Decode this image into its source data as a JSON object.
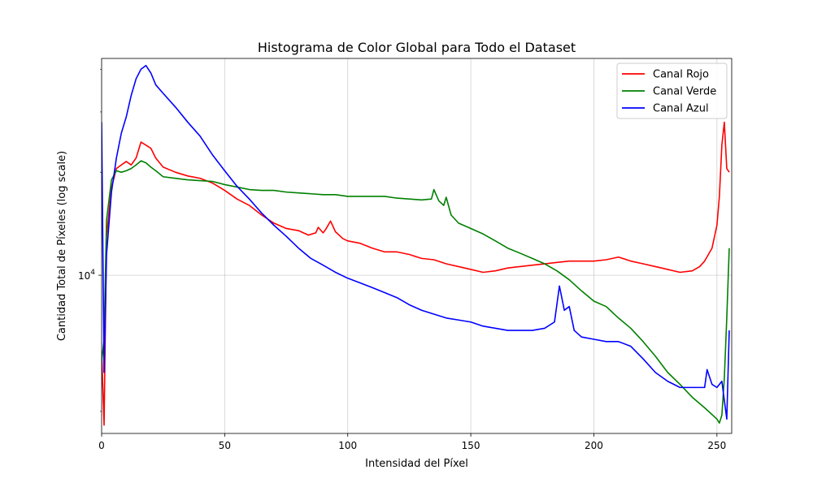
{
  "chart_data": {
    "type": "line",
    "title": "Histograma de Color Global para Todo el Dataset",
    "xlabel": "Intensidad del Píxel",
    "ylabel": "Cantidad Total de Píxeles (log scale)",
    "y_scale": "log",
    "xlim": [
      0,
      256
    ],
    "ylim": [
      3450,
      43000
    ],
    "x_ticks": [
      0,
      50,
      100,
      150,
      200,
      250
    ],
    "y_major_tick": {
      "value": 10000,
      "base": "10",
      "exp": "4"
    },
    "y_minor_ticks": [
      4000,
      20000,
      30000,
      40000
    ],
    "grid": true,
    "legend_position": "upper right",
    "series": [
      {
        "name": "Canal Rojo",
        "color": "#ff0000",
        "points": [
          [
            0,
            6000
          ],
          [
            1,
            3650
          ],
          [
            2,
            13000
          ],
          [
            4,
            18000
          ],
          [
            6,
            20500
          ],
          [
            8,
            21000
          ],
          [
            10,
            21500
          ],
          [
            12,
            21000
          ],
          [
            14,
            22000
          ],
          [
            16,
            24500
          ],
          [
            18,
            24000
          ],
          [
            20,
            23500
          ],
          [
            22,
            22000
          ],
          [
            25,
            20700
          ],
          [
            30,
            20000
          ],
          [
            35,
            19500
          ],
          [
            40,
            19200
          ],
          [
            45,
            18600
          ],
          [
            50,
            17700
          ],
          [
            55,
            16700
          ],
          [
            60,
            16000
          ],
          [
            65,
            15000
          ],
          [
            70,
            14200
          ],
          [
            75,
            13700
          ],
          [
            80,
            13500
          ],
          [
            84,
            13100
          ],
          [
            87,
            13300
          ],
          [
            88,
            13800
          ],
          [
            90,
            13300
          ],
          [
            91,
            13600
          ],
          [
            93,
            14400
          ],
          [
            95,
            13400
          ],
          [
            98,
            12800
          ],
          [
            100,
            12600
          ],
          [
            105,
            12400
          ],
          [
            110,
            12000
          ],
          [
            115,
            11700
          ],
          [
            120,
            11700
          ],
          [
            125,
            11500
          ],
          [
            130,
            11200
          ],
          [
            135,
            11100
          ],
          [
            140,
            10800
          ],
          [
            145,
            10600
          ],
          [
            150,
            10400
          ],
          [
            155,
            10200
          ],
          [
            160,
            10300
          ],
          [
            165,
            10500
          ],
          [
            170,
            10600
          ],
          [
            175,
            10700
          ],
          [
            180,
            10800
          ],
          [
            185,
            10900
          ],
          [
            190,
            11000
          ],
          [
            195,
            11000
          ],
          [
            200,
            11000
          ],
          [
            205,
            11100
          ],
          [
            210,
            11300
          ],
          [
            215,
            11000
          ],
          [
            220,
            10800
          ],
          [
            225,
            10600
          ],
          [
            230,
            10400
          ],
          [
            235,
            10200
          ],
          [
            240,
            10300
          ],
          [
            243,
            10600
          ],
          [
            245,
            11000
          ],
          [
            248,
            12000
          ],
          [
            250,
            14000
          ],
          [
            251,
            17000
          ],
          [
            252,
            24000
          ],
          [
            253,
            28000
          ],
          [
            254,
            20500
          ],
          [
            255,
            20000
          ]
        ]
      },
      {
        "name": "Canal Verde",
        "color": "#008000",
        "points": [
          [
            0,
            5600
          ],
          [
            1,
            6500
          ],
          [
            2,
            14500
          ],
          [
            4,
            19000
          ],
          [
            6,
            20200
          ],
          [
            8,
            20000
          ],
          [
            10,
            20200
          ],
          [
            12,
            20500
          ],
          [
            14,
            21000
          ],
          [
            16,
            21600
          ],
          [
            18,
            21300
          ],
          [
            20,
            20700
          ],
          [
            22,
            20200
          ],
          [
            25,
            19400
          ],
          [
            30,
            19200
          ],
          [
            35,
            19000
          ],
          [
            40,
            18900
          ],
          [
            45,
            18800
          ],
          [
            50,
            18400
          ],
          [
            55,
            18100
          ],
          [
            60,
            17800
          ],
          [
            65,
            17700
          ],
          [
            70,
            17700
          ],
          [
            75,
            17500
          ],
          [
            80,
            17400
          ],
          [
            85,
            17300
          ],
          [
            90,
            17200
          ],
          [
            95,
            17200
          ],
          [
            100,
            17000
          ],
          [
            105,
            17000
          ],
          [
            110,
            17000
          ],
          [
            115,
            17000
          ],
          [
            120,
            16800
          ],
          [
            125,
            16700
          ],
          [
            130,
            16600
          ],
          [
            134,
            16700
          ],
          [
            135,
            17800
          ],
          [
            137,
            16500
          ],
          [
            139,
            16000
          ],
          [
            140,
            16900
          ],
          [
            142,
            15000
          ],
          [
            145,
            14200
          ],
          [
            150,
            13700
          ],
          [
            155,
            13200
          ],
          [
            160,
            12600
          ],
          [
            165,
            12000
          ],
          [
            170,
            11600
          ],
          [
            175,
            11200
          ],
          [
            180,
            10800
          ],
          [
            185,
            10300
          ],
          [
            190,
            9700
          ],
          [
            195,
            9000
          ],
          [
            200,
            8400
          ],
          [
            205,
            8100
          ],
          [
            210,
            7500
          ],
          [
            215,
            7000
          ],
          [
            220,
            6400
          ],
          [
            225,
            5800
          ],
          [
            230,
            5200
          ],
          [
            235,
            4800
          ],
          [
            240,
            4400
          ],
          [
            245,
            4100
          ],
          [
            250,
            3800
          ],
          [
            251,
            3700
          ],
          [
            252,
            3900
          ],
          [
            253,
            5000
          ],
          [
            254,
            7500
          ],
          [
            255,
            12000
          ]
        ]
      },
      {
        "name": "Canal Azul",
        "color": "#0000ff",
        "points": [
          [
            0,
            28000
          ],
          [
            1,
            5200
          ],
          [
            2,
            11500
          ],
          [
            4,
            17500
          ],
          [
            6,
            22000
          ],
          [
            8,
            26000
          ],
          [
            10,
            29000
          ],
          [
            12,
            33500
          ],
          [
            14,
            37500
          ],
          [
            16,
            40000
          ],
          [
            18,
            41000
          ],
          [
            20,
            39000
          ],
          [
            22,
            36000
          ],
          [
            25,
            34000
          ],
          [
            30,
            31000
          ],
          [
            35,
            28000
          ],
          [
            40,
            25500
          ],
          [
            45,
            22500
          ],
          [
            50,
            20200
          ],
          [
            55,
            18200
          ],
          [
            60,
            16700
          ],
          [
            65,
            15200
          ],
          [
            70,
            14000
          ],
          [
            75,
            13000
          ],
          [
            80,
            12000
          ],
          [
            85,
            11200
          ],
          [
            90,
            10700
          ],
          [
            95,
            10200
          ],
          [
            100,
            9800
          ],
          [
            105,
            9500
          ],
          [
            110,
            9200
          ],
          [
            115,
            8900
          ],
          [
            120,
            8600
          ],
          [
            125,
            8200
          ],
          [
            130,
            7900
          ],
          [
            135,
            7700
          ],
          [
            140,
            7500
          ],
          [
            145,
            7400
          ],
          [
            150,
            7300
          ],
          [
            155,
            7100
          ],
          [
            160,
            7000
          ],
          [
            165,
            6900
          ],
          [
            170,
            6900
          ],
          [
            175,
            6900
          ],
          [
            180,
            7000
          ],
          [
            184,
            7300
          ],
          [
            186,
            9300
          ],
          [
            188,
            7900
          ],
          [
            190,
            8100
          ],
          [
            192,
            6900
          ],
          [
            195,
            6600
          ],
          [
            200,
            6500
          ],
          [
            205,
            6400
          ],
          [
            210,
            6400
          ],
          [
            215,
            6200
          ],
          [
            220,
            5700
          ],
          [
            225,
            5200
          ],
          [
            230,
            4900
          ],
          [
            235,
            4700
          ],
          [
            240,
            4700
          ],
          [
            245,
            4700
          ],
          [
            246,
            5300
          ],
          [
            248,
            4800
          ],
          [
            250,
            4700
          ],
          [
            252,
            4900
          ],
          [
            254,
            3800
          ],
          [
            255,
            6900
          ]
        ]
      }
    ]
  }
}
